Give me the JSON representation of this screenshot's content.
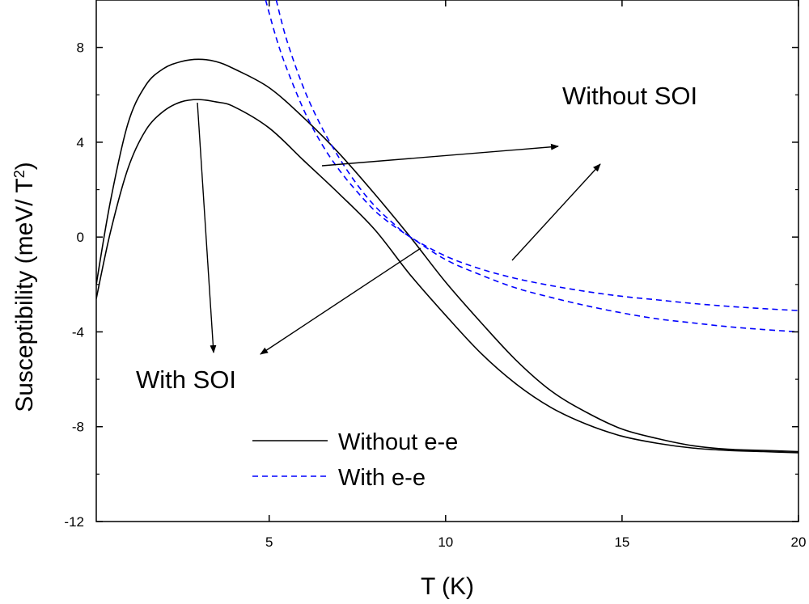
{
  "chart_data": {
    "type": "line",
    "xlabel": "T (K)",
    "ylabel": "Susceptibility (meV/ T",
    "ylabel_sup": "2",
    "ylabel_close": ")",
    "xlim": [
      0.1,
      20
    ],
    "ylim": [
      -12,
      10
    ],
    "xticks": [
      5,
      10,
      15,
      20
    ],
    "yticks": [
      -12,
      -8,
      -4,
      0,
      4,
      8
    ],
    "grid": false,
    "legend_position": "bottom-center",
    "legend": [
      {
        "label": "Without e-e",
        "style": "solid",
        "color": "#000000"
      },
      {
        "label": "With e-e",
        "style": "dashed",
        "color": "#0000ff"
      }
    ],
    "series": [
      {
        "style": "solid",
        "color": "#000000",
        "x": [
          0.1,
          0.5,
          1,
          1.5,
          2,
          2.5,
          3,
          3.5,
          4,
          5,
          6,
          7,
          8,
          9,
          10,
          11,
          12,
          13,
          14,
          15,
          16,
          17,
          18,
          19,
          20
        ],
        "y": [
          -2.0,
          1.5,
          4.8,
          6.4,
          7.1,
          7.4,
          7.5,
          7.4,
          7.1,
          6.3,
          5.0,
          3.5,
          1.8,
          0.0,
          -1.9,
          -3.6,
          -5.2,
          -6.5,
          -7.4,
          -8.1,
          -8.5,
          -8.8,
          -8.95,
          -9.0,
          -9.05
        ]
      },
      {
        "style": "solid",
        "color": "#000000",
        "x": [
          0.1,
          0.5,
          1,
          1.5,
          2,
          2.5,
          3,
          3.5,
          4,
          5,
          6,
          7,
          8,
          9,
          10,
          11,
          12,
          13,
          14,
          15,
          16,
          17,
          18,
          19,
          20
        ],
        "y": [
          -2.6,
          0.2,
          2.9,
          4.5,
          5.3,
          5.7,
          5.8,
          5.7,
          5.5,
          4.6,
          3.2,
          1.8,
          0.3,
          -1.6,
          -3.3,
          -4.9,
          -6.2,
          -7.2,
          -7.9,
          -8.4,
          -8.7,
          -8.9,
          -9.0,
          -9.05,
          -9.1
        ]
      },
      {
        "style": "dashed",
        "color": "#0000ff",
        "x": [
          5.2,
          5.5,
          6,
          6.5,
          7,
          7.5,
          8,
          8.5,
          9,
          10,
          11,
          12,
          13,
          14,
          15,
          16,
          17,
          18,
          19,
          20
        ],
        "y": [
          10.0,
          8.3,
          6.2,
          4.6,
          3.3,
          2.2,
          1.3,
          0.6,
          0.0,
          -0.8,
          -1.35,
          -1.75,
          -2.05,
          -2.3,
          -2.5,
          -2.65,
          -2.8,
          -2.92,
          -3.02,
          -3.1
        ]
      },
      {
        "style": "dashed",
        "color": "#0000ff",
        "x": [
          4.9,
          5.2,
          5.5,
          6,
          6.5,
          7,
          7.5,
          8,
          8.5,
          9,
          10,
          11,
          12,
          13,
          14,
          15,
          16,
          17,
          18,
          19,
          20
        ],
        "y": [
          10.0,
          8.4,
          7.1,
          5.3,
          3.9,
          2.8,
          1.9,
          1.1,
          0.5,
          0.0,
          -0.95,
          -1.6,
          -2.15,
          -2.55,
          -2.9,
          -3.2,
          -3.45,
          -3.62,
          -3.78,
          -3.9,
          -4.0
        ]
      }
    ],
    "annotations": [
      {
        "text": "Without SOI"
      },
      {
        "text": "With SOI"
      }
    ]
  }
}
